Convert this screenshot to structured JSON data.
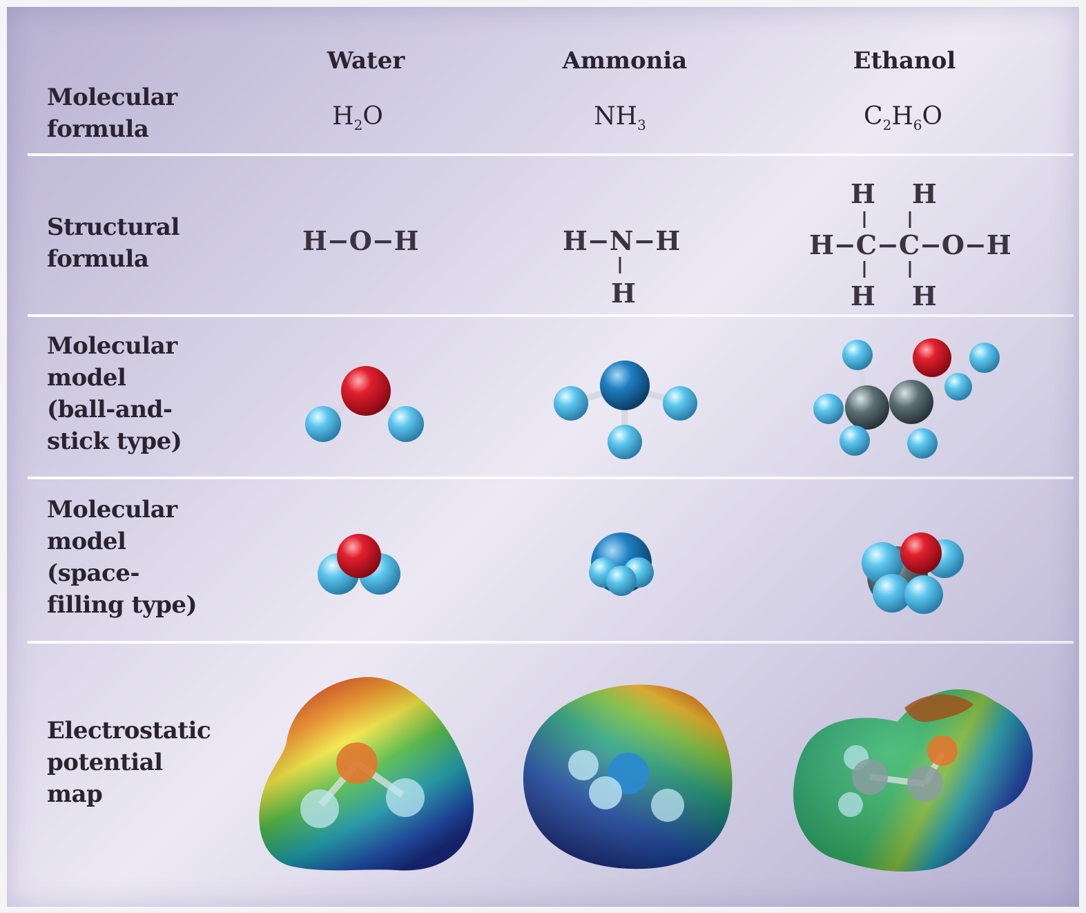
{
  "columns": [
    "Water",
    "Ammonia",
    "Ethanol"
  ],
  "rows": {
    "molecular_formula": "Molecular\nformula",
    "structural_formula": "Structural\nformula",
    "ball_and_stick": "Molecular\nmodel\n(ball-and-\nstick type)",
    "space_filling": "Molecular\nmodel\n(space-\nfilling type)",
    "electrostatic": "Electrostatic\npotential\nmap"
  },
  "molecular_formulas": {
    "water": {
      "main": "H",
      "sub": "2",
      "tail": "O"
    },
    "ammonia": {
      "main": "NH",
      "sub": "3",
      "tail": ""
    },
    "ethanol": {
      "c": "C",
      "c_sub": "2",
      "h": "H",
      "h_sub": "6",
      "tail": "O"
    }
  },
  "structural": {
    "water": "H−O−H",
    "ammonia": {
      "line": "H−N−H",
      "bottom": "H"
    },
    "ethanol": {
      "top": "H    H",
      "line": "H−C−C−O−H",
      "bottom": "H    H"
    }
  },
  "colors": {
    "oxygen": "#e2202e",
    "nitrogen": "#1f7fc0",
    "hydrogen": "#5cc6ee",
    "carbon": "#5d6f74"
  }
}
